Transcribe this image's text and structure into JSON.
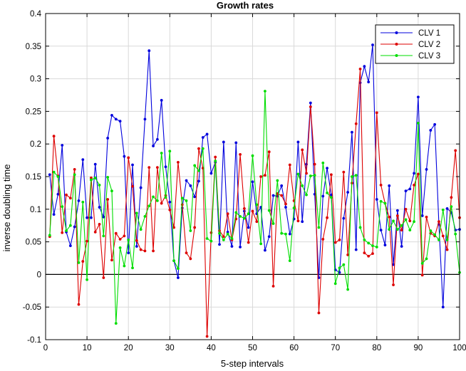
{
  "chart_data": {
    "type": "line",
    "title": "Growth rates",
    "xlabel": "5-step intervals",
    "ylabel": "inverse doubling time",
    "xlim": [
      0,
      100
    ],
    "ylim": [
      -0.1,
      0.4
    ],
    "xticks": [
      0,
      10,
      20,
      30,
      40,
      50,
      60,
      70,
      80,
      90,
      100
    ],
    "yticks": [
      -0.1,
      -0.05,
      0,
      0.05,
      0.1,
      0.15,
      0.2,
      0.25,
      0.3,
      0.35,
      0.4
    ],
    "grid": true,
    "reference_line": 0,
    "legend_position": "top-right",
    "x": [
      1,
      2,
      3,
      4,
      5,
      6,
      7,
      8,
      9,
      10,
      11,
      12,
      13,
      14,
      15,
      16,
      17,
      18,
      19,
      20,
      21,
      22,
      23,
      24,
      25,
      26,
      27,
      28,
      29,
      30,
      31,
      32,
      33,
      34,
      35,
      36,
      37,
      38,
      39,
      40,
      41,
      42,
      43,
      44,
      45,
      46,
      47,
      48,
      49,
      50,
      51,
      52,
      53,
      54,
      55,
      56,
      57,
      58,
      59,
      60,
      61,
      62,
      63,
      64,
      65,
      66,
      67,
      68,
      69,
      70,
      71,
      72,
      73,
      74,
      75,
      76,
      77,
      78,
      79,
      80,
      81,
      82,
      83,
      84,
      85,
      86,
      87,
      88,
      89,
      90,
      91,
      92,
      93,
      94,
      95,
      96,
      97,
      98,
      99,
      100
    ],
    "series": [
      {
        "name": "CLV 1",
        "color": "#0000dd",
        "values": [
          0.153,
          0.092,
          0.123,
          0.198,
          0.065,
          0.044,
          0.073,
          0.113,
          0.176,
          0.087,
          0.087,
          0.169,
          0.103,
          0.088,
          0.209,
          0.244,
          0.238,
          0.235,
          0.181,
          0.033,
          0.168,
          0.043,
          0.133,
          0.238,
          0.343,
          0.197,
          0.207,
          0.267,
          0.165,
          0.111,
          0.021,
          -0.005,
          0.102,
          0.144,
          0.136,
          0.119,
          0.143,
          0.21,
          0.215,
          0.155,
          0.172,
          0.046,
          0.203,
          0.065,
          0.043,
          0.202,
          0.042,
          0.097,
          0.072,
          0.142,
          0.093,
          0.103,
          0.037,
          0.058,
          0.121,
          0.12,
          0.136,
          0.103,
          0.062,
          0.085,
          0.203,
          0.081,
          0.169,
          0.263,
          0.123,
          -0.005,
          0.12,
          0.163,
          0.122,
          0.007,
          0.003,
          0.086,
          0.126,
          0.218,
          0.038,
          0.294,
          0.319,
          0.295,
          0.352,
          0.115,
          0.068,
          0.045,
          0.136,
          0.015,
          0.098,
          0.043,
          0.128,
          0.131,
          0.155,
          0.272,
          0.09,
          0.161,
          0.221,
          0.23,
          0.077,
          -0.05,
          0.101,
          0.095,
          0.068,
          0.069
        ]
      },
      {
        "name": "CLV 2",
        "color": "#dd0000",
        "values": [
          0.058,
          0.212,
          0.151,
          0.064,
          0.122,
          0.117,
          0.161,
          -0.046,
          0.02,
          0.051,
          0.148,
          0.065,
          0.077,
          -0.005,
          0.115,
          0.022,
          0.063,
          0.054,
          0.059,
          0.179,
          0.135,
          0.052,
          0.038,
          0.036,
          0.164,
          0.036,
          0.164,
          0.109,
          0.121,
          0.099,
          0.072,
          0.172,
          0.107,
          0.033,
          0.024,
          0.072,
          0.193,
          0.163,
          -0.095,
          0.064,
          0.18,
          0.067,
          0.058,
          0.093,
          0.053,
          0.085,
          0.184,
          0.101,
          0.049,
          0.097,
          0.081,
          0.15,
          0.152,
          0.188,
          -0.018,
          0.124,
          0.121,
          0.108,
          0.168,
          0.113,
          0.082,
          0.191,
          0.155,
          0.257,
          0.169,
          -0.059,
          0.054,
          0.087,
          0.153,
          0.049,
          0.053,
          0.157,
          0.03,
          0.14,
          0.231,
          0.315,
          0.033,
          0.028,
          0.032,
          0.248,
          0.137,
          0.109,
          0.088,
          -0.016,
          0.09,
          0.068,
          0.1,
          0.082,
          0.137,
          0.154,
          -0.001,
          0.088,
          0.063,
          0.059,
          0.081,
          0.059,
          0.038,
          0.118,
          0.19,
          0.087
        ]
      },
      {
        "name": "CLV 3",
        "color": "#00dd00",
        "values": [
          0.06,
          0.157,
          0.15,
          0.104,
          0.067,
          0.075,
          0.153,
          0.018,
          0.111,
          -0.008,
          0.145,
          0.148,
          0.137,
          0.059,
          0.149,
          0.128,
          -0.075,
          0.041,
          0.013,
          0.053,
          0.01,
          0.094,
          0.069,
          0.089,
          0.105,
          0.119,
          0.113,
          0.186,
          0.118,
          0.189,
          0.021,
          0.009,
          0.117,
          0.113,
          0.067,
          0.167,
          0.159,
          0.193,
          0.055,
          0.051,
          0.174,
          0.063,
          0.053,
          0.062,
          0.055,
          0.095,
          0.089,
          0.086,
          0.093,
          0.182,
          0.107,
          0.047,
          0.281,
          0.098,
          0.078,
          0.144,
          0.063,
          0.062,
          0.021,
          0.102,
          0.154,
          0.136,
          0.122,
          0.151,
          0.152,
          0.072,
          0.171,
          0.125,
          0.118,
          -0.014,
          0.01,
          0.015,
          -0.023,
          0.15,
          0.152,
          0.072,
          0.053,
          0.048,
          0.044,
          0.042,
          0.112,
          0.109,
          0.069,
          0.082,
          0.069,
          0.075,
          0.084,
          0.068,
          0.081,
          0.232,
          0.017,
          0.024,
          0.067,
          0.061,
          0.053,
          0.099,
          0.053,
          0.104,
          0.062,
          0.003
        ]
      }
    ]
  }
}
